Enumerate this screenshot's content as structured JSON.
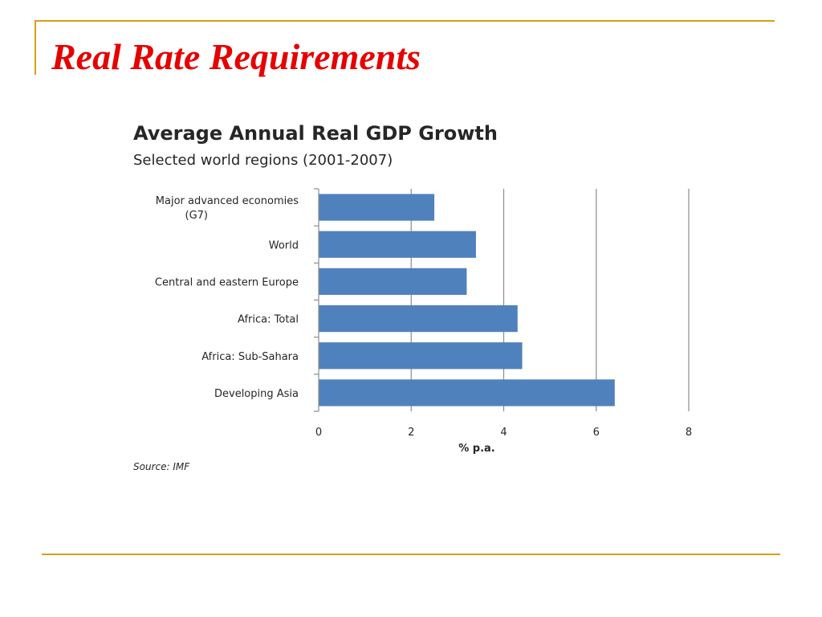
{
  "slide": {
    "title": "Real Rate Requirements"
  },
  "source": "Source: IMF",
  "chart_data": {
    "type": "bar",
    "orientation": "horizontal",
    "title": "Average Annual Real GDP Growth",
    "subtitle": "Selected world regions (2001-2007)",
    "categories": [
      "Major advanced economies (G7)",
      "World",
      "Central and eastern Europe",
      "Africa: Total",
      "Africa: Sub-Sahara",
      "Developing Asia"
    ],
    "category_label_lines": [
      [
        "Major advanced economies",
        "(G7)"
      ],
      [
        "World"
      ],
      [
        "Central and eastern Europe"
      ],
      [
        "Africa: Total"
      ],
      [
        "Africa: Sub-Sahara"
      ],
      [
        "Developing Asia"
      ]
    ],
    "values": [
      2.5,
      3.4,
      3.2,
      4.3,
      4.4,
      6.4
    ],
    "xlabel": "% p.a.",
    "ylabel": "",
    "xlim": [
      0,
      8
    ],
    "xticks": [
      0,
      2,
      4,
      6,
      8
    ],
    "grid": "vertical",
    "bar_color": "#4f81bd"
  }
}
